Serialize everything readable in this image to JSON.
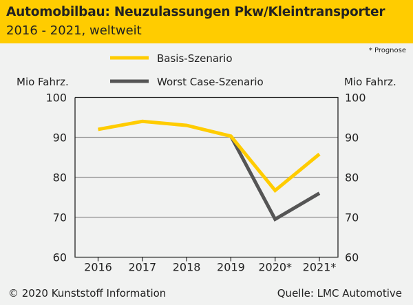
{
  "header": {
    "title": "Automobilbau: Neuzulassungen Pkw/Kleintransporter",
    "subtitle": "2016 - 2021, weltweit"
  },
  "note": "* Prognose",
  "footer": {
    "copyright": "© 2020 Kunststoff Information",
    "source": "Quelle: LMC Automotive"
  },
  "colors": {
    "basis": "#ffcc00",
    "worst": "#555555",
    "grid": "#999999"
  },
  "chart_data": {
    "type": "line",
    "title": "Automobilbau: Neuzulassungen Pkw/Kleintransporter",
    "ylabel": "Mio Fahrz.",
    "ylabel_right": "Mio Fahrz.",
    "categories": [
      "2016",
      "2017",
      "2018",
      "2019",
      "2020*",
      "2021*"
    ],
    "ylim": [
      60,
      100
    ],
    "yticks": [
      60,
      70,
      80,
      90,
      100
    ],
    "grid": true,
    "legend_position": "top",
    "series": [
      {
        "name": "Basis-Szenario",
        "values": [
          92.0,
          94.0,
          93.0,
          90.3,
          76.7,
          85.8
        ]
      },
      {
        "name": "Worst Case-Szenario",
        "values": [
          null,
          null,
          null,
          90.3,
          69.5,
          76.0
        ]
      }
    ]
  }
}
